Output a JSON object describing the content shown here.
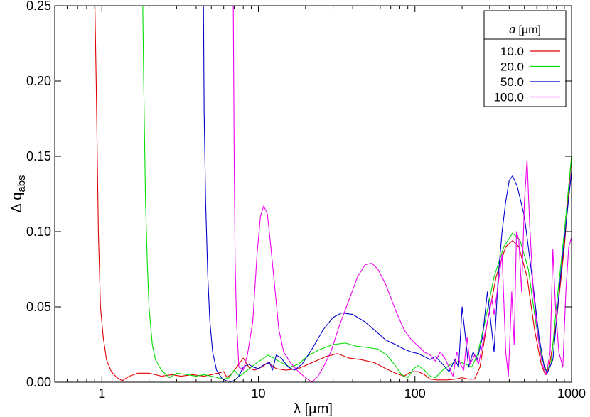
{
  "chart_data": {
    "type": "line",
    "title": "",
    "xlabel": "λ [µm]",
    "ylabel_main": "Δ q",
    "ylabel_sub": "abs",
    "xscale": "log",
    "xlim": [
      0.5,
      1000
    ],
    "ylim": [
      0,
      0.25
    ],
    "x_ticks": [
      {
        "value": 1,
        "label": "1"
      },
      {
        "value": 10,
        "label": "10"
      },
      {
        "value": 100,
        "label": "100"
      },
      {
        "value": 1000,
        "label": "1000"
      }
    ],
    "y_ticks": [
      {
        "value": 0,
        "label": "0.00"
      },
      {
        "value": 0.05,
        "label": "0.05"
      },
      {
        "value": 0.1,
        "label": "0.10"
      },
      {
        "value": 0.15,
        "label": "0.15"
      },
      {
        "value": 0.2,
        "label": "0.20"
      },
      {
        "value": 0.25,
        "label": "0.25"
      }
    ],
    "grid": false,
    "legend": {
      "placement": "top-right",
      "title_italic": "a",
      "title_unit": "[µm]"
    },
    "series": [
      {
        "name": "10.0",
        "color": "#e00000",
        "points": [
          [
            0.9,
            0.26
          ],
          [
            0.92,
            0.2
          ],
          [
            0.95,
            0.1
          ],
          [
            0.98,
            0.05
          ],
          [
            1.02,
            0.03
          ],
          [
            1.07,
            0.015
          ],
          [
            1.15,
            0.007
          ],
          [
            1.25,
            0.003
          ],
          [
            1.35,
            0.001
          ],
          [
            1.5,
            0.004
          ],
          [
            1.7,
            0.006
          ],
          [
            2.0,
            0.006
          ],
          [
            2.4,
            0.004
          ],
          [
            2.8,
            0.005
          ],
          [
            3.2,
            0.004
          ],
          [
            3.8,
            0.005
          ],
          [
            4.5,
            0.004
          ],
          [
            5.0,
            0.005
          ],
          [
            5.5,
            0.006
          ],
          [
            6.0,
            0.007
          ],
          [
            6.3,
            0.003
          ],
          [
            6.8,
            0.006
          ],
          [
            7.5,
            0.012
          ],
          [
            8.0,
            0.016
          ],
          [
            8.8,
            0.009
          ],
          [
            9.5,
            0.008
          ],
          [
            10.5,
            0.01
          ],
          [
            11.5,
            0.013
          ],
          [
            13,
            0.009
          ],
          [
            15,
            0.008
          ],
          [
            18,
            0.009
          ],
          [
            22,
            0.013
          ],
          [
            27,
            0.017
          ],
          [
            32,
            0.019
          ],
          [
            38,
            0.016
          ],
          [
            45,
            0.015
          ],
          [
            55,
            0.013
          ],
          [
            65,
            0.009
          ],
          [
            75,
            0.006
          ],
          [
            85,
            0.004
          ],
          [
            95,
            0.007
          ],
          [
            105,
            0.007
          ],
          [
            115,
            0.005
          ],
          [
            125,
            0.002
          ],
          [
            140,
            0.0015
          ],
          [
            160,
            0.0015
          ],
          [
            180,
            0.002
          ],
          [
            200,
            0.003
          ],
          [
            220,
            0.002
          ],
          [
            240,
            0.002
          ],
          [
            260,
            0.01
          ],
          [
            290,
            0.04
          ],
          [
            330,
            0.07
          ],
          [
            380,
            0.09
          ],
          [
            420,
            0.094
          ],
          [
            460,
            0.09
          ],
          [
            520,
            0.07
          ],
          [
            580,
            0.035
          ],
          [
            640,
            0.012
          ],
          [
            680,
            0.005
          ],
          [
            720,
            0.01
          ],
          [
            800,
            0.04
          ],
          [
            900,
            0.09
          ],
          [
            1000,
            0.15
          ]
        ]
      },
      {
        "name": "20.0",
        "color": "#00dd00",
        "points": [
          [
            1.82,
            0.26
          ],
          [
            1.85,
            0.2
          ],
          [
            1.9,
            0.12
          ],
          [
            1.95,
            0.08
          ],
          [
            2.0,
            0.05
          ],
          [
            2.1,
            0.025
          ],
          [
            2.2,
            0.015
          ],
          [
            2.4,
            0.008
          ],
          [
            2.7,
            0.003
          ],
          [
            3.0,
            0.006
          ],
          [
            3.5,
            0.005
          ],
          [
            4.0,
            0.004
          ],
          [
            4.5,
            0.005
          ],
          [
            5.0,
            0.004
          ],
          [
            5.5,
            0.003
          ],
          [
            6.0,
            0.002
          ],
          [
            6.5,
            0.003
          ],
          [
            7.0,
            0.008
          ],
          [
            7.6,
            0.004
          ],
          [
            8.5,
            0.008
          ],
          [
            9.5,
            0.012
          ],
          [
            10.5,
            0.015
          ],
          [
            11.5,
            0.018
          ],
          [
            12.5,
            0.016
          ],
          [
            14,
            0.013
          ],
          [
            16,
            0.01
          ],
          [
            18,
            0.012
          ],
          [
            21,
            0.018
          ],
          [
            25,
            0.022
          ],
          [
            30,
            0.025
          ],
          [
            36,
            0.026
          ],
          [
            42,
            0.024
          ],
          [
            50,
            0.023
          ],
          [
            58,
            0.022
          ],
          [
            66,
            0.018
          ],
          [
            75,
            0.011
          ],
          [
            82,
            0.005
          ],
          [
            90,
            0.003
          ],
          [
            98,
            0.009
          ],
          [
            105,
            0.011
          ],
          [
            115,
            0.008
          ],
          [
            125,
            0.004
          ],
          [
            135,
            0.003
          ],
          [
            150,
            0.008
          ],
          [
            170,
            0.012
          ],
          [
            190,
            0.014
          ],
          [
            210,
            0.012
          ],
          [
            230,
            0.01
          ],
          [
            250,
            0.018
          ],
          [
            280,
            0.04
          ],
          [
            320,
            0.07
          ],
          [
            370,
            0.09
          ],
          [
            420,
            0.099
          ],
          [
            470,
            0.094
          ],
          [
            530,
            0.075
          ],
          [
            590,
            0.04
          ],
          [
            650,
            0.015
          ],
          [
            690,
            0.008
          ],
          [
            740,
            0.012
          ],
          [
            800,
            0.05
          ],
          [
            900,
            0.1
          ],
          [
            1000,
            0.15
          ]
        ]
      },
      {
        "name": "50.0",
        "color": "#0000cc",
        "points": [
          [
            4.45,
            0.26
          ],
          [
            4.5,
            0.18
          ],
          [
            4.6,
            0.12
          ],
          [
            4.75,
            0.07
          ],
          [
            4.9,
            0.04
          ],
          [
            5.1,
            0.02
          ],
          [
            5.4,
            0.008
          ],
          [
            5.8,
            0.003
          ],
          [
            6.2,
            0.001
          ],
          [
            6.6,
            0.0005
          ],
          [
            7.0,
            0.001
          ],
          [
            7.5,
            0.004
          ],
          [
            8.0,
            0.01
          ],
          [
            8.6,
            0.012
          ],
          [
            9.3,
            0.01
          ],
          [
            10,
            0.009
          ],
          [
            11,
            0.012
          ],
          [
            11.8,
            0.013
          ],
          [
            12.3,
            0.008
          ],
          [
            13,
            0.018
          ],
          [
            14,
            0.016
          ],
          [
            15.5,
            0.01
          ],
          [
            17,
            0.008
          ],
          [
            19,
            0.012
          ],
          [
            22,
            0.022
          ],
          [
            26,
            0.035
          ],
          [
            30,
            0.043
          ],
          [
            34,
            0.046
          ],
          [
            40,
            0.045
          ],
          [
            48,
            0.04
          ],
          [
            56,
            0.034
          ],
          [
            65,
            0.028
          ],
          [
            75,
            0.025
          ],
          [
            85,
            0.022
          ],
          [
            95,
            0.02
          ],
          [
            105,
            0.019
          ],
          [
            115,
            0.017
          ],
          [
            125,
            0.015
          ],
          [
            135,
            0.017
          ],
          [
            150,
            0.012
          ],
          [
            165,
            0.007
          ],
          [
            180,
            0.015
          ],
          [
            190,
            0.01
          ],
          [
            200,
            0.05
          ],
          [
            210,
            0.03
          ],
          [
            220,
            0.01
          ],
          [
            235,
            0.02
          ],
          [
            250,
            0.015
          ],
          [
            270,
            0.03
          ],
          [
            290,
            0.06
          ],
          [
            305,
            0.04
          ],
          [
            320,
            0.02
          ],
          [
            340,
            0.07
          ],
          [
            360,
            0.1
          ],
          [
            380,
            0.12
          ],
          [
            400,
            0.134
          ],
          [
            420,
            0.137
          ],
          [
            450,
            0.13
          ],
          [
            500,
            0.11
          ],
          [
            560,
            0.07
          ],
          [
            620,
            0.03
          ],
          [
            670,
            0.01
          ],
          [
            700,
            0.006
          ],
          [
            760,
            0.015
          ],
          [
            850,
            0.07
          ],
          [
            1000,
            0.14
          ]
        ]
      },
      {
        "name": "100.0",
        "color": "#ee00ee",
        "points": [
          [
            6.9,
            0.26
          ],
          [
            7.0,
            0.15
          ],
          [
            7.1,
            0.08
          ],
          [
            7.25,
            0.04
          ],
          [
            7.5,
            0.01
          ],
          [
            8.0,
            0.008
          ],
          [
            8.5,
            0.018
          ],
          [
            9.2,
            0.04
          ],
          [
            9.8,
            0.085
          ],
          [
            10.3,
            0.11
          ],
          [
            10.8,
            0.117
          ],
          [
            11.4,
            0.112
          ],
          [
            12,
            0.09
          ],
          [
            12.8,
            0.06
          ],
          [
            13.5,
            0.035
          ],
          [
            14.5,
            0.02
          ],
          [
            16,
            0.013
          ],
          [
            18,
            0.007
          ],
          [
            20,
            0.003
          ],
          [
            22,
            0.0
          ],
          [
            24,
            0.004
          ],
          [
            26,
            0.01
          ],
          [
            29,
            0.02
          ],
          [
            33,
            0.038
          ],
          [
            38,
            0.055
          ],
          [
            43,
            0.07
          ],
          [
            48,
            0.078
          ],
          [
            53,
            0.079
          ],
          [
            58,
            0.075
          ],
          [
            65,
            0.065
          ],
          [
            75,
            0.048
          ],
          [
            85,
            0.035
          ],
          [
            95,
            0.028
          ],
          [
            105,
            0.024
          ],
          [
            115,
            0.02
          ],
          [
            125,
            0.018
          ],
          [
            135,
            0.014
          ],
          [
            145,
            0.02
          ],
          [
            155,
            0.016
          ],
          [
            165,
            0.01
          ],
          [
            175,
            0.004
          ],
          [
            185,
            0.02
          ],
          [
            195,
            0.012
          ],
          [
            205,
            0.008
          ],
          [
            215,
            0.03
          ],
          [
            225,
            0.012
          ],
          [
            240,
            0.018
          ],
          [
            255,
            0.012
          ],
          [
            270,
            0.025
          ],
          [
            290,
            0.04
          ],
          [
            310,
            0.055
          ],
          [
            320,
            0.045
          ],
          [
            340,
            0.065
          ],
          [
            360,
            0.085
          ],
          [
            380,
            0.02
          ],
          [
            395,
            0.004
          ],
          [
            415,
            0.06
          ],
          [
            430,
            0.025
          ],
          [
            445,
            0.1
          ],
          [
            460,
            0.095
          ],
          [
            480,
            0.06
          ],
          [
            500,
            0.12
          ],
          [
            520,
            0.148
          ],
          [
            540,
            0.105
          ],
          [
            570,
            0.06
          ],
          [
            610,
            0.03
          ],
          [
            650,
            0.012
          ],
          [
            690,
            0.005
          ],
          [
            730,
            0.02
          ],
          [
            760,
            0.088
          ],
          [
            790,
            0.05
          ],
          [
            830,
            0.02
          ],
          [
            880,
            0.01
          ],
          [
            920,
            0.06
          ],
          [
            960,
            0.09
          ],
          [
            1000,
            0.096
          ]
        ]
      }
    ]
  }
}
